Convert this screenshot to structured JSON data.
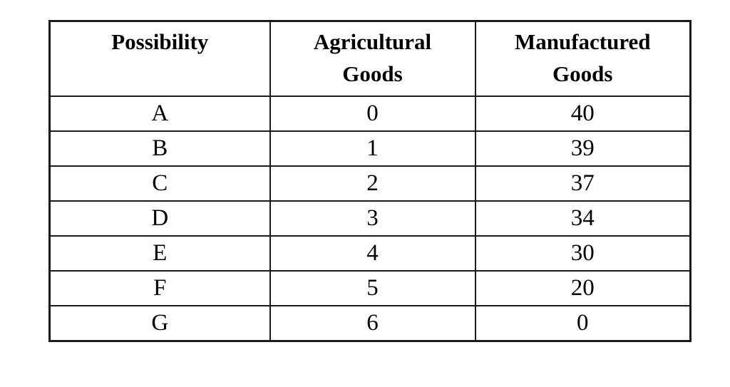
{
  "table": {
    "columns": [
      {
        "label": "Possibility"
      },
      {
        "label": "Agricultural Goods"
      },
      {
        "label": "Manufactured Goods"
      }
    ],
    "rows": [
      {
        "possibility": "A",
        "agricultural": "0",
        "manufactured": "40"
      },
      {
        "possibility": "B",
        "agricultural": "1",
        "manufactured": "39"
      },
      {
        "possibility": "C",
        "agricultural": "2",
        "manufactured": "37"
      },
      {
        "possibility": "D",
        "agricultural": "3",
        "manufactured": "34"
      },
      {
        "possibility": "E",
        "agricultural": "4",
        "manufactured": "30"
      },
      {
        "possibility": "F",
        "agricultural": "5",
        "manufactured": "20"
      },
      {
        "possibility": "G",
        "agricultural": "6",
        "manufactured": "0"
      }
    ],
    "colors": {
      "border": "#1b1b1b",
      "text": "#000000",
      "background": "#ffffff"
    }
  }
}
